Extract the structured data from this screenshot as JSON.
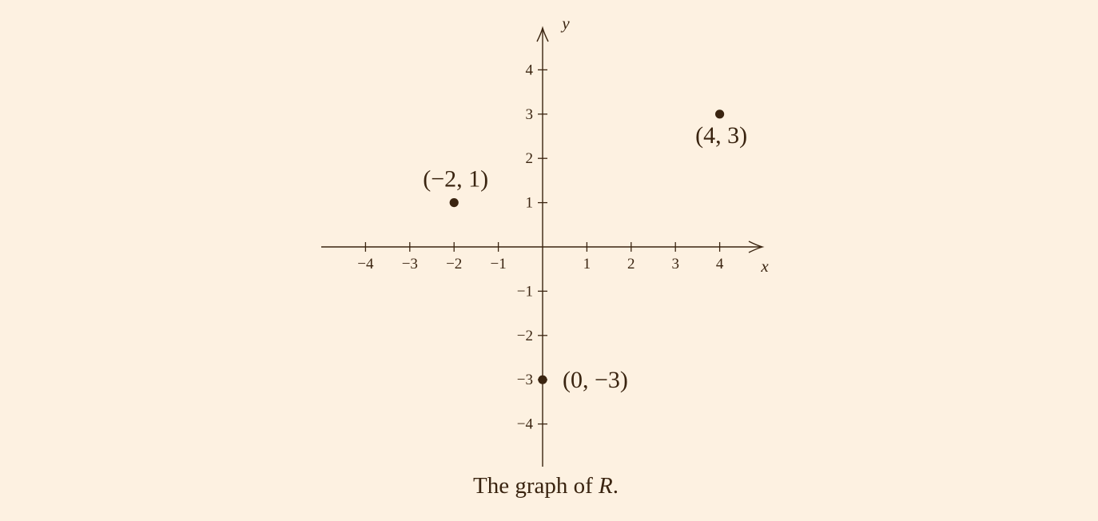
{
  "chart_data": {
    "type": "scatter",
    "xlabel": "x",
    "ylabel": "y",
    "xlim": [
      -5,
      5
    ],
    "ylim": [
      -5,
      5
    ],
    "x_ticks": [
      -4,
      -3,
      -2,
      -1,
      1,
      2,
      3,
      4
    ],
    "y_ticks": [
      -4,
      -3,
      -2,
      -1,
      1,
      2,
      3,
      4
    ],
    "x_tick_labels": [
      "−4",
      "−3",
      "−2",
      "−1",
      "1",
      "2",
      "3",
      "4"
    ],
    "y_tick_labels": [
      "−4",
      "−3",
      "−2",
      "−1",
      "1",
      "2",
      "3",
      "4"
    ],
    "grid": false,
    "points": [
      {
        "x": -2,
        "y": 1,
        "label": "(−2, 1)"
      },
      {
        "x": 4,
        "y": 3,
        "label": "(4, 3)"
      },
      {
        "x": 0,
        "y": -3,
        "label": "(0, −3)"
      }
    ]
  },
  "caption": {
    "before": "The graph of ",
    "variable": "R",
    "after": "."
  },
  "colors": {
    "background": "#fdf1e1",
    "ink": "#3a2410"
  }
}
